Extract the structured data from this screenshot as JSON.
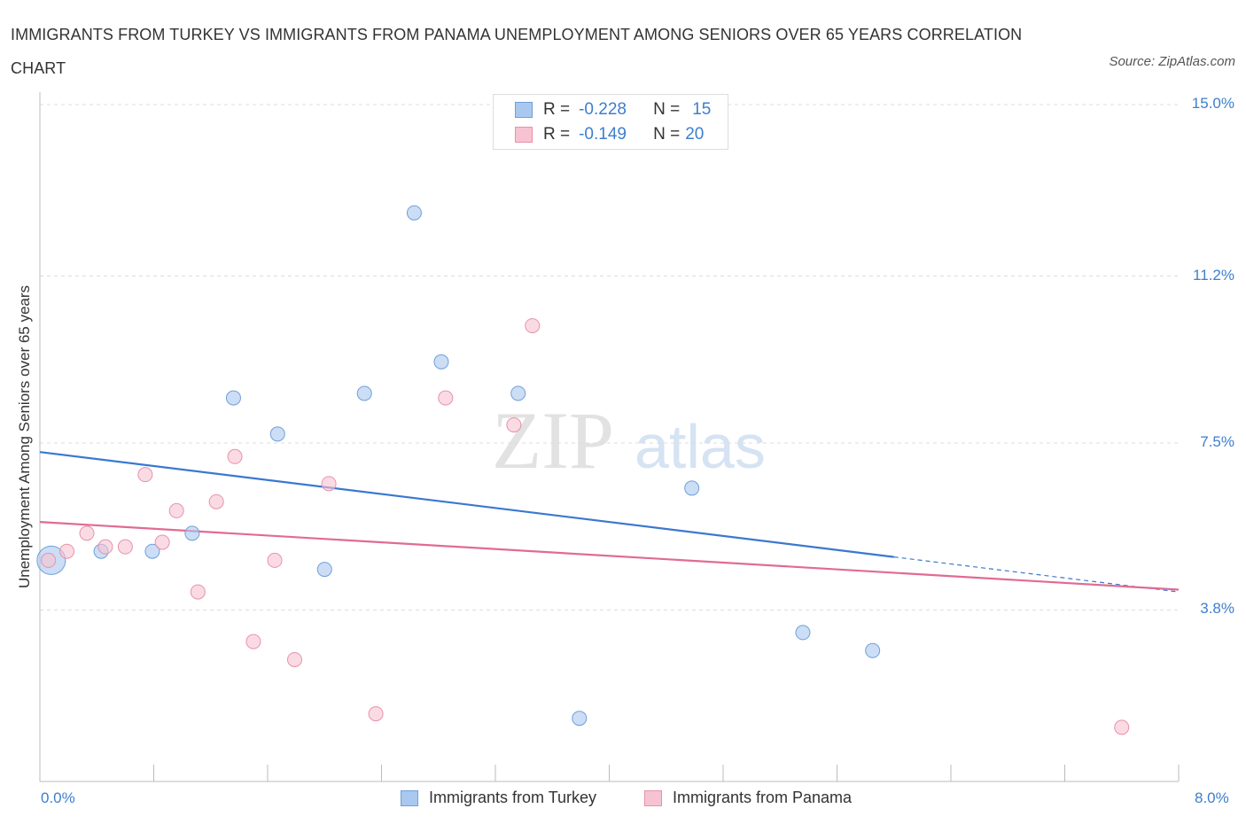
{
  "title": "IMMIGRANTS FROM TURKEY VS IMMIGRANTS FROM PANAMA UNEMPLOYMENT AMONG SENIORS OVER 65 YEARS CORRELATION CHART",
  "source": "Source: ZipAtlas.com",
  "watermark": {
    "zip": "ZIP",
    "atlas": "atlas"
  },
  "legend": {
    "rows": [
      {
        "r_label": "R =",
        "r_value": "-0.228",
        "n_label": "N =",
        "n_value": "15",
        "color": "#a9c8f0",
        "border": "#6f9fd8"
      },
      {
        "r_label": "R =",
        "r_value": "-0.149",
        "n_label": "N =",
        "n_value": "20",
        "color": "#f7c3d2",
        "border": "#e891ab"
      }
    ]
  },
  "chart_data": {
    "type": "scatter",
    "title": "IMMIGRANTS FROM TURKEY VS IMMIGRANTS FROM PANAMA UNEMPLOYMENT AMONG SENIORS OVER 65 YEARS CORRELATION CHART",
    "xlabel": "",
    "ylabel": "Unemployment Among Seniors over 65 years",
    "xlim": [
      0,
      8
    ],
    "ylim": [
      0,
      15
    ],
    "x_tick_labels": [
      "0.0%",
      "8.0%"
    ],
    "y_ticks": [
      3.8,
      7.5,
      11.2,
      15.0
    ],
    "y_tick_labels": [
      "3.8%",
      "7.5%",
      "11.2%",
      "15.0%"
    ],
    "grid": true,
    "series": [
      {
        "name": "Immigrants from Turkey",
        "color": "#a9c8f0",
        "stroke": "#6f9fd8",
        "line_color": "#3a78d0",
        "trend": {
          "x0": 0,
          "y0": 7.3,
          "x1": 8,
          "y1": 4.2,
          "solid_until_x": 6.0
        },
        "points": [
          {
            "x": 0.08,
            "y": 4.9,
            "big": true
          },
          {
            "x": 0.43,
            "y": 5.1
          },
          {
            "x": 0.79,
            "y": 5.1
          },
          {
            "x": 1.07,
            "y": 5.5
          },
          {
            "x": 1.36,
            "y": 8.5
          },
          {
            "x": 1.67,
            "y": 7.7
          },
          {
            "x": 2.0,
            "y": 4.7
          },
          {
            "x": 2.28,
            "y": 8.6
          },
          {
            "x": 2.63,
            "y": 12.6
          },
          {
            "x": 2.82,
            "y": 9.3
          },
          {
            "x": 3.36,
            "y": 8.6
          },
          {
            "x": 3.79,
            "y": 1.4
          },
          {
            "x": 4.58,
            "y": 6.5
          },
          {
            "x": 5.36,
            "y": 3.3
          },
          {
            "x": 5.85,
            "y": 2.9
          }
        ]
      },
      {
        "name": "Immigrants from Panama",
        "color": "#f7c3d2",
        "stroke": "#e891ab",
        "line_color": "#e06b93",
        "trend": {
          "x0": 0,
          "y0": 5.75,
          "x1": 8,
          "y1": 4.25,
          "solid_until_x": 8
        },
        "points": [
          {
            "x": 0.06,
            "y": 4.9
          },
          {
            "x": 0.19,
            "y": 5.1
          },
          {
            "x": 0.33,
            "y": 5.5
          },
          {
            "x": 0.46,
            "y": 5.2
          },
          {
            "x": 0.6,
            "y": 5.2
          },
          {
            "x": 0.74,
            "y": 6.8
          },
          {
            "x": 0.86,
            "y": 5.3
          },
          {
            "x": 0.96,
            "y": 6.0
          },
          {
            "x": 1.11,
            "y": 4.2
          },
          {
            "x": 1.24,
            "y": 6.2
          },
          {
            "x": 1.37,
            "y": 7.2
          },
          {
            "x": 1.5,
            "y": 3.1
          },
          {
            "x": 1.65,
            "y": 4.9
          },
          {
            "x": 1.79,
            "y": 2.7
          },
          {
            "x": 2.03,
            "y": 6.6
          },
          {
            "x": 2.36,
            "y": 1.5
          },
          {
            "x": 2.85,
            "y": 8.5
          },
          {
            "x": 3.33,
            "y": 7.9
          },
          {
            "x": 3.46,
            "y": 10.1
          },
          {
            "x": 7.6,
            "y": 1.2
          }
        ]
      }
    ]
  },
  "bottom_legend": [
    {
      "label": "Immigrants from Turkey",
      "color": "#a9c8f0",
      "border": "#6f9fd8"
    },
    {
      "label": "Immigrants from Panama",
      "color": "#f7c3d2",
      "border": "#e891ab"
    }
  ]
}
